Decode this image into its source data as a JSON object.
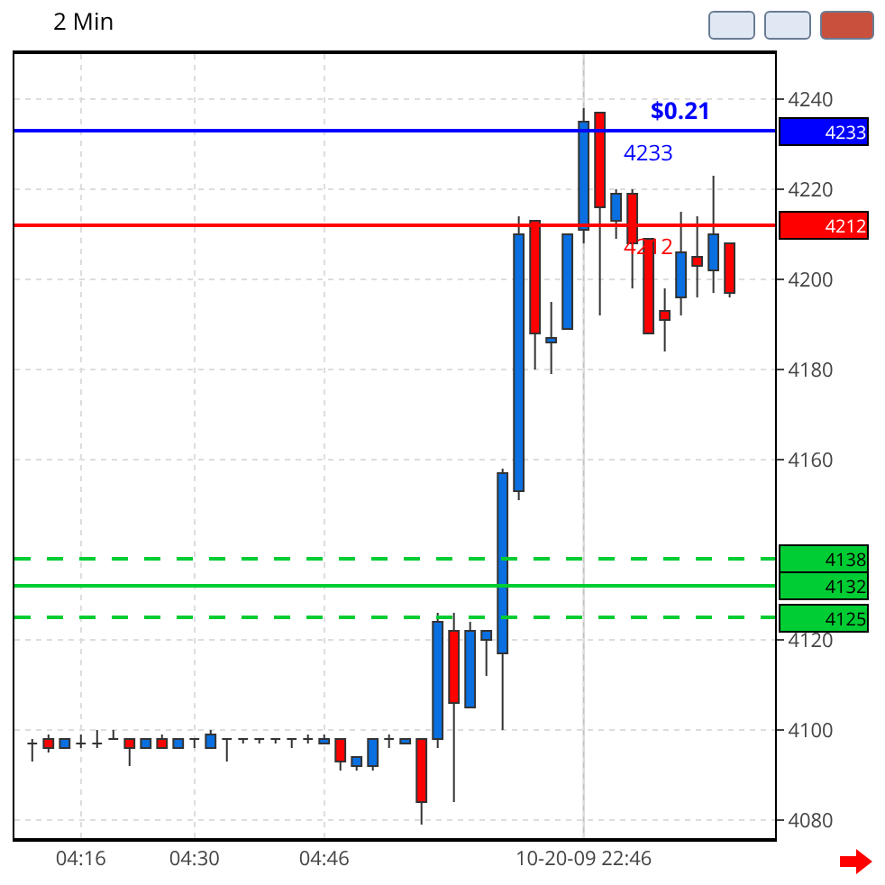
{
  "chart_data": {
    "type": "candlestick",
    "title": "2 Min",
    "categories": [
      null,
      null,
      null,
      "04:16",
      null,
      null,
      null,
      null,
      null,
      null,
      "04:30",
      null,
      null,
      null,
      null,
      null,
      null,
      null,
      "04:46",
      null,
      null,
      null,
      null,
      null,
      null,
      null,
      null,
      null,
      null,
      null,
      null,
      null,
      null,
      null,
      "10-20-09 22:46",
      null,
      null,
      null,
      null,
      null,
      null,
      null,
      null,
      null
    ],
    "ohlc": [
      [
        4097,
        4098,
        4093,
        4097
      ],
      [
        4098,
        4099,
        4095,
        4096
      ],
      [
        4096,
        4098,
        4096,
        4098
      ],
      [
        4097,
        4099,
        4096,
        4097
      ],
      [
        4097,
        4100,
        4096,
        4097
      ],
      [
        4098,
        4100,
        4098,
        4098
      ],
      [
        4098,
        4098,
        4092,
        4096
      ],
      [
        4096,
        4098,
        4096,
        4098
      ],
      [
        4098,
        4099,
        4096,
        4096
      ],
      [
        4096,
        4098,
        4096,
        4098
      ],
      [
        4098,
        4098,
        4096,
        4098
      ],
      [
        4096,
        4100,
        4096,
        4099
      ],
      [
        4098,
        4098,
        4093,
        4098
      ],
      [
        4098,
        4098,
        4097,
        4098
      ],
      [
        4098,
        4098,
        4097,
        4098
      ],
      [
        4098,
        4098,
        4097,
        4098
      ],
      [
        4098,
        4098,
        4096,
        4098
      ],
      [
        4098,
        4099,
        4097,
        4098
      ],
      [
        4097,
        4099,
        4097,
        4098
      ],
      [
        4098,
        4098,
        4091,
        4093
      ],
      [
        4092,
        4094,
        4091,
        4094
      ],
      [
        4092,
        4098,
        4091,
        4098
      ],
      [
        4098,
        4099,
        4096,
        4098
      ],
      [
        4097,
        4098,
        4097,
        4098
      ],
      [
        4098,
        4098,
        4079,
        4084
      ],
      [
        4098,
        4126,
        4096,
        4124
      ],
      [
        4122,
        4126,
        4084,
        4106
      ],
      [
        4105,
        4124,
        4105,
        4122
      ],
      [
        4120,
        4122,
        4112,
        4122
      ],
      [
        4117,
        4158,
        4100,
        4157
      ],
      [
        4153,
        4214,
        4151,
        4210
      ],
      [
        4213,
        4213,
        4180,
        4188
      ],
      [
        4186,
        4195,
        4179,
        4187
      ],
      [
        4189,
        4210,
        4189,
        4210
      ],
      [
        4211,
        4238,
        4208,
        4235
      ],
      [
        4237,
        4237,
        4192,
        4216
      ],
      [
        4213,
        4220,
        4209,
        4219
      ],
      [
        4219,
        4220,
        4198,
        4208
      ],
      [
        4209,
        4209,
        4188,
        4188
      ],
      [
        4193,
        4198,
        4184,
        4191
      ],
      [
        4196,
        4215,
        4192,
        4206
      ],
      [
        4205,
        4214,
        4196,
        4203
      ],
      [
        4202,
        4223,
        4197,
        4210
      ],
      [
        4208,
        4208,
        4196,
        4197
      ]
    ],
    "colors": [
      "#333333",
      "#ff0000",
      "#0a6fe0",
      "#333333",
      "#333333",
      "#333333",
      "#ff0000",
      "#0a6fe0",
      "#ff0000",
      "#0a6fe0",
      "#333333",
      "#0a6fe0",
      "#333333",
      "#333333",
      "#333333",
      "#333333",
      "#333333",
      "#333333",
      "#0a6fe0",
      "#ff0000",
      "#0a6fe0",
      "#0a6fe0",
      "#333333",
      "#0a6fe0",
      "#ff0000",
      "#0a6fe0",
      "#ff0000",
      "#0a6fe0",
      "#0a6fe0",
      "#0a6fe0",
      "#0a6fe0",
      "#ff0000",
      "#0a6fe0",
      "#0a6fe0",
      "#0a6fe0",
      "#ff0000",
      "#0a6fe0",
      "#ff0000",
      "#ff0000",
      "#ff0000",
      "#0a6fe0",
      "#ff0000",
      "#0a6fe0",
      "#ff0000"
    ],
    "ylim": [
      4076,
      4250
    ],
    "yticks": [
      4080,
      4100,
      4120,
      4160,
      4180,
      4200,
      4220,
      4240
    ],
    "grid": true,
    "ref_lines": [
      {
        "axis": "y",
        "value": 4233,
        "label": "4233",
        "color": "#0000ff"
      },
      {
        "axis": "y",
        "value": 4212,
        "label": "4212",
        "color": "#ff0000"
      },
      {
        "axis": "y",
        "value": 4138,
        "label": "4138",
        "color": "#00cc33",
        "line_style": "dashed"
      },
      {
        "axis": "y",
        "value": 4132,
        "label": "4132",
        "color": "#00cc33"
      },
      {
        "axis": "y",
        "value": 4125,
        "label": "4125",
        "color": "#00cc33",
        "line_style": "dashed"
      },
      {
        "axis": "x",
        "value": "10-20-09 22:46",
        "color": "#c0c0c0"
      }
    ],
    "annotations": [
      {
        "text": "$0.21",
        "y": 4233
      },
      {
        "text": "4233",
        "y": 4233
      },
      {
        "text": "4212",
        "y": 4212
      }
    ]
  }
}
